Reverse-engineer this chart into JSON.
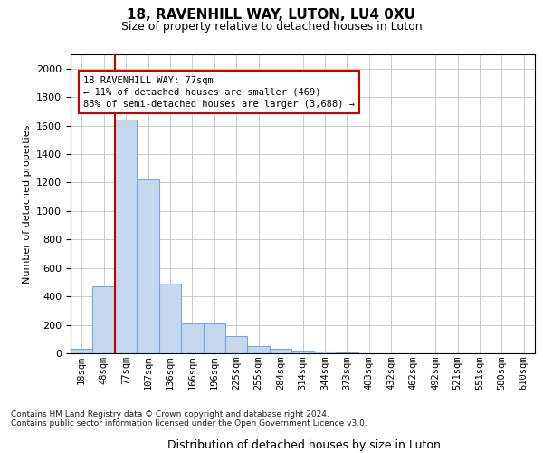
{
  "title1": "18, RAVENHILL WAY, LUTON, LU4 0XU",
  "title2": "Size of property relative to detached houses in Luton",
  "xlabel": "Distribution of detached houses by size in Luton",
  "ylabel": "Number of detached properties",
  "footnote1": "Contains HM Land Registry data © Crown copyright and database right 2024.",
  "footnote2": "Contains public sector information licensed under the Open Government Licence v3.0.",
  "bar_color": "#c5d8f0",
  "bar_edge_color": "#7aaad4",
  "vline_color": "#cc0000",
  "annotation_box_edgecolor": "#cc0000",
  "annotation_line1": "18 RAVENHILL WAY: 77sqm",
  "annotation_line2": "← 11% of detached houses are smaller (469)",
  "annotation_line3": "88% of semi-detached houses are larger (3,688) →",
  "vline_idx": 2,
  "categories": [
    "18sqm",
    "48sqm",
    "77sqm",
    "107sqm",
    "136sqm",
    "166sqm",
    "196sqm",
    "225sqm",
    "255sqm",
    "284sqm",
    "314sqm",
    "344sqm",
    "373sqm",
    "403sqm",
    "432sqm",
    "462sqm",
    "492sqm",
    "521sqm",
    "551sqm",
    "580sqm",
    "610sqm"
  ],
  "values": [
    30,
    470,
    1640,
    1220,
    490,
    210,
    210,
    120,
    50,
    35,
    20,
    12,
    8,
    3,
    2,
    1,
    0,
    0,
    0,
    0,
    0
  ],
  "ylim": [
    0,
    2100
  ],
  "yticks": [
    0,
    200,
    400,
    600,
    800,
    1000,
    1200,
    1400,
    1600,
    1800,
    2000
  ],
  "background_color": "#ffffff",
  "grid_color": "#cccccc",
  "title1_fontsize": 11,
  "title2_fontsize": 9,
  "ylabel_fontsize": 8,
  "xlabel_fontsize": 9,
  "tick_fontsize": 8,
  "xtick_fontsize": 7.5
}
